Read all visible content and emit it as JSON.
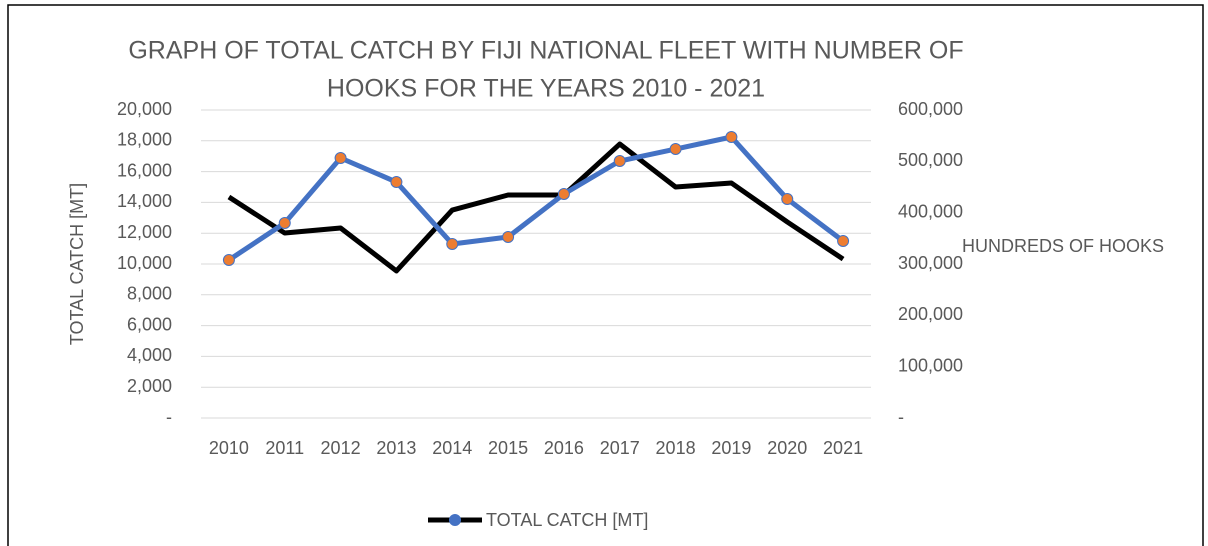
{
  "chart_data": {
    "type": "line",
    "title": [
      "GRAPH OF TOTAL CATCH BY FIJI NATIONAL FLEET WITH NUMBER OF",
      "HOOKS FOR THE YEARS 2010 - 2021"
    ],
    "ylabel": "TOTAL CATCH [MT]",
    "y2label": "HUNDREDS OF HOOKS",
    "categories": [
      "2010",
      "2011",
      "2012",
      "2013",
      "2014",
      "2015",
      "2016",
      "2017",
      "2018",
      "2019",
      "2020",
      "2021"
    ],
    "series": [
      {
        "name": "TOTAL CATCH [MT]",
        "color": "#000000",
        "legend_marker_color": "#4472c4",
        "values": [
          14350,
          12010,
          12340,
          9550,
          13500,
          14480,
          14480,
          17790,
          15000,
          15260,
          12730,
          10320
        ]
      },
      {
        "color": "#4472c4",
        "marker_color": "#ed7d31",
        "axis": "y2",
        "values": [
          307800,
          379900,
          506500,
          459700,
          339000,
          352600,
          436400,
          500600,
          524000,
          547400,
          426600,
          344800
        ]
      }
    ],
    "ylim": [
      0,
      20000
    ],
    "yticks": [
      {
        "value": 0,
        "label": "-"
      },
      {
        "value": 2000,
        "label": "2,000"
      },
      {
        "value": 4000,
        "label": "4,000"
      },
      {
        "value": 6000,
        "label": "6,000"
      },
      {
        "value": 8000,
        "label": "8,000"
      },
      {
        "value": 10000,
        "label": "10,000"
      },
      {
        "value": 12000,
        "label": "12,000"
      },
      {
        "value": 14000,
        "label": "14,000"
      },
      {
        "value": 16000,
        "label": "16,000"
      },
      {
        "value": 18000,
        "label": "18,000"
      },
      {
        "value": 20000,
        "label": "20,000"
      }
    ],
    "y2lim": [
      0,
      600000
    ],
    "y2ticks": [
      {
        "value": 0,
        "label": "-"
      },
      {
        "value": 100000,
        "label": "100,000"
      },
      {
        "value": 200000,
        "label": "200,000"
      },
      {
        "value": 300000,
        "label": "300,000"
      },
      {
        "value": 400000,
        "label": "400,000"
      },
      {
        "value": 500000,
        "label": "500,000"
      },
      {
        "value": 600000,
        "label": "600,000"
      }
    ],
    "grid": true,
    "legend": "bottom"
  }
}
